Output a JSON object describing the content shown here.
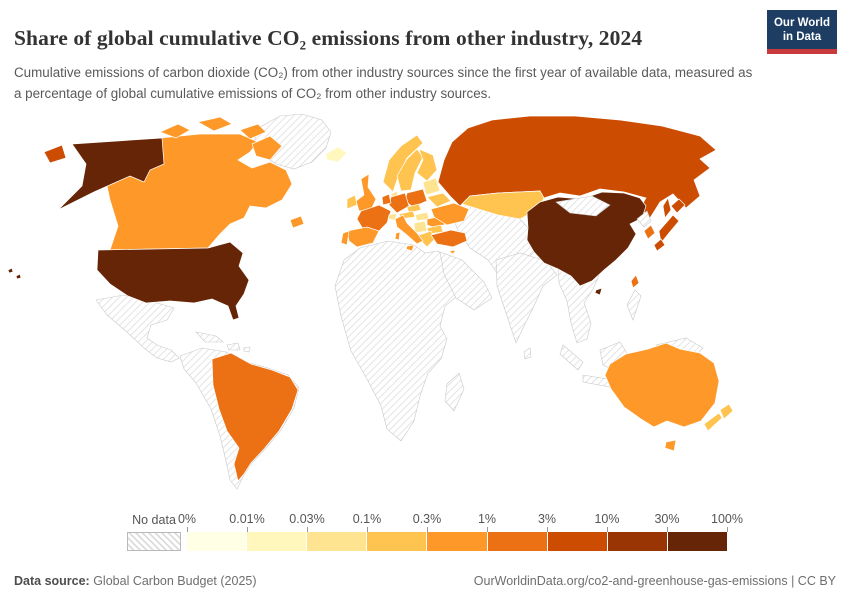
{
  "header": {
    "title": "Share of global cumulative CO₂ emissions from other industry, 2024",
    "subtitle": "Cumulative emissions of carbon dioxide (CO₂) from other industry sources since the first year of available data, measured as a percentage of global cumulative emissions of CO₂ from other industry sources.",
    "logo": {
      "line1": "Our World",
      "line2": "in Data",
      "bg": "#1d3d63",
      "accent": "#c93a3d"
    }
  },
  "legend": {
    "no_data_label": "No data",
    "tick_labels": [
      "0%",
      "0.01%",
      "0.03%",
      "0.1%",
      "0.3%",
      "1%",
      "3%",
      "10%",
      "30%",
      "100%"
    ],
    "colors": [
      "#FFFFE5",
      "#FFF7BC",
      "#FEE391",
      "#FEC44F",
      "#FE9929",
      "#EC7014",
      "#CC4C02",
      "#993404",
      "#662506"
    ]
  },
  "footer": {
    "source_label": "Data source:",
    "source_value": " Global Carbon Budget (2025)",
    "attribution": "OurWorldinData.org/co2-and-greenhouse-gas-emissions | CC BY"
  },
  "chart_data": {
    "type": "choropleth-world-map",
    "title": "Share of global cumulative CO₂ emissions from other industry, 2024",
    "unit": "% of global cumulative CO₂ emissions from other industry",
    "scale_type": "log-binned",
    "bin_edges_percent": [
      0,
      0.01,
      0.03,
      0.1,
      0.3,
      1,
      3,
      10,
      30,
      100
    ],
    "bin_colors": [
      "#FFFFE5",
      "#FFF7BC",
      "#FEE391",
      "#FEC44F",
      "#FE9929",
      "#EC7014",
      "#CC4C02",
      "#993404",
      "#662506"
    ],
    "legend_position": "bottom",
    "regions_by_bin": {
      "30-100%": [
        "United States",
        "China"
      ],
      "3-10%": [
        "Russia",
        "Japan"
      ],
      "1-3%": [
        "Brazil",
        "France",
        "Germany",
        "Poland",
        "Turkey",
        "South Korea",
        "Taiwan",
        "Netherlands/Belgium"
      ],
      "0.3-1%": [
        "Canada",
        "Australia",
        "United Kingdom",
        "Spain",
        "Portugal",
        "Italy",
        "Ukraine",
        "Romania",
        "Cyprus"
      ],
      "0.1-0.3%": [
        "Norway",
        "Sweden",
        "Finland",
        "Kazakhstan",
        "New Zealand",
        "Belarus",
        "Greece",
        "Ireland",
        "Austria",
        "Bulgaria",
        "Czechia"
      ],
      "0.03-0.1%": [
        "Baltic states",
        "Switzerland",
        "Hungary",
        "Denmark",
        "Balkans"
      ],
      "0.01-0.03%": [
        "Iceland"
      ]
    },
    "no_data_regions": [
      "Greenland",
      "Mexico",
      "Central America",
      "Caribbean",
      "South America except Brazil",
      "Africa",
      "Madagascar",
      "Middle East",
      "Arabia",
      "Central Asia",
      "India",
      "South Asia",
      "Southeast Asia",
      "Indonesia",
      "Philippines",
      "New Guinea",
      "Mongolia",
      "North Korea"
    ]
  },
  "map": {
    "no_data_fill": "no-data",
    "country_colors": {
      "united-states": "#662506",
      "china": "#662506",
      "russia": "#CC4C02",
      "japan": "#CC4C02",
      "brazil": "#EC7014",
      "france": "#EC7014",
      "germany": "#EC7014",
      "poland": "#EC7014",
      "turkey": "#EC7014",
      "south-korea": "#EC7014",
      "taiwan": "#EC7014",
      "benelux": "#EC7014",
      "canada": "#FE9929",
      "australia": "#FE9929",
      "tasmania": "#FE9929",
      "united-kingdom": "#FE9929",
      "spain": "#FE9929",
      "portugal": "#FE9929",
      "italy": "#FE9929",
      "ukraine": "#FE9929",
      "romania": "#FE9929",
      "cyprus": "#FE9929",
      "ireland": "#FEC44F",
      "norway": "#FEC44F",
      "sweden": "#FEC44F",
      "finland": "#FEC44F",
      "kazakhstan": "#FEC44F",
      "new-zealand": "#FEC44F",
      "belarus": "#FEC44F",
      "greece": "#FEC44F",
      "austria": "#FEC44F",
      "bulgaria": "#FEC44F",
      "czechia": "#FEC44F",
      "baltics": "#FEE391",
      "switzerland": "#FEE391",
      "hungary": "#FEE391",
      "denmark": "#FEE391",
      "balkans": "#FEE391",
      "iceland": "#FFF7BC",
      "greenland": "no-data",
      "mexico-central-america": "no-data",
      "cuba": "no-data",
      "hispaniola": "no-data",
      "puerto-rico": "no-data",
      "south-america": "no-data",
      "africa": "no-data",
      "madagascar": "no-data",
      "arabia": "no-data",
      "central-asia-middle-east": "no-data",
      "india": "no-data",
      "sri-lanka": "no-data",
      "southeast-asia": "no-data",
      "sumatra": "no-data",
      "java": "no-data",
      "borneo": "no-data",
      "sulawesi": "no-data",
      "new-guinea": "no-data",
      "philippines": "no-data",
      "mongolia": "no-data",
      "north-korea": "no-data"
    }
  }
}
